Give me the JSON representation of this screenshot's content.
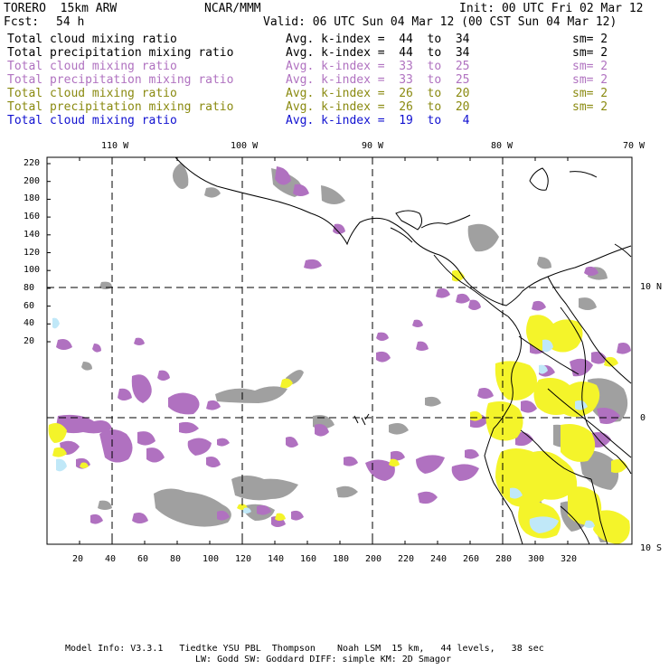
{
  "header": {
    "model": "TORERO  15km ARW",
    "org": "NCAR/MMM",
    "init": "Init: 00 UTC Fri 02 Mar 12",
    "fcst_label": "Fcst:",
    "fcst_value": "54 h",
    "valid": "Valid: 06 UTC Sun 04 Mar 12 (00 CST Sun 04 Mar 12)"
  },
  "legend": [
    {
      "field": "Total cloud mixing ratio",
      "index": "Avg. k-index =  44  to  34",
      "sm": "sm= 2",
      "color": "#000000"
    },
    {
      "field": "Total precipitation mixing ratio",
      "index": "Avg. k-index =  44  to  34",
      "sm": "sm= 2",
      "color": "#000000"
    },
    {
      "field": "Total cloud mixing ratio",
      "index": "Avg. k-index =  33  to  25",
      "sm": "sm= 2",
      "color": "#b072c0"
    },
    {
      "field": "Total precipitation mixing ratio",
      "index": "Avg. k-index =  33  to  25",
      "sm": "sm= 2",
      "color": "#b072c0"
    },
    {
      "field": "Total cloud mixing ratio",
      "index": "Avg. k-index =  26  to  20",
      "sm": "sm= 2",
      "color": "#8a8a10"
    },
    {
      "field": "Total precipitation mixing ratio",
      "index": "Avg. k-index =  26  to  20",
      "sm": "sm= 2",
      "color": "#8a8a10"
    },
    {
      "field": "Total cloud mixing ratio",
      "index": "Avg. k-index =  19  to   4",
      "sm": "",
      "color": "#1010d0"
    }
  ],
  "map": {
    "lon_labels": [
      "110 W",
      "100 W",
      "90 W",
      "80 W",
      "70 W"
    ],
    "lat_labels": [
      "10 N",
      "0",
      "10 S"
    ],
    "y_ticks": [
      "220",
      "200",
      "180",
      "160",
      "140",
      "120",
      "100",
      "80",
      "60",
      "40",
      "20"
    ],
    "x_ticks": [
      "20",
      "40",
      "60",
      "80",
      "100",
      "120",
      "140",
      "160",
      "180",
      "200",
      "220",
      "240",
      "260",
      "280",
      "300",
      "320"
    ],
    "colors": {
      "gray": "#a0a0a0",
      "purple": "#b071c0",
      "yellow": "#f4f42a",
      "lightblue": "#c0e8f8"
    }
  },
  "footer": {
    "line1": "Model Info: V3.3.1   Tiedtke YSU PBL  Thompson    Noah LSM  15 km,   44 levels,   38 sec",
    "line2": "LW: Godd SW: Goddard DIFF: simple KM: 2D Smagor"
  }
}
